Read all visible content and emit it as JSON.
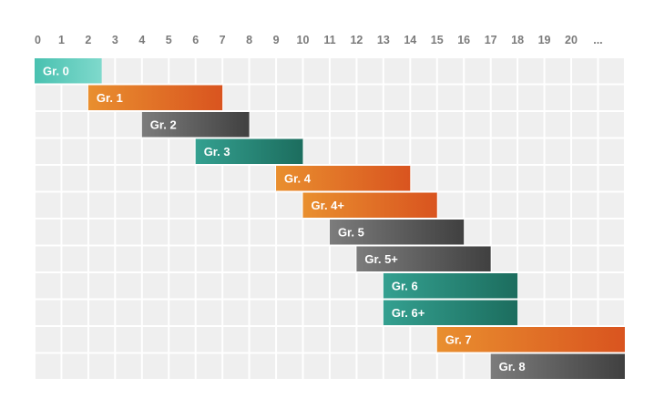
{
  "chart_data": {
    "type": "gantt",
    "title": "",
    "xlabel": "",
    "ylabel": "",
    "grid": true,
    "xlim": [
      0,
      22
    ],
    "x_ticks": [
      {
        "value": 0,
        "label": "0"
      },
      {
        "value": 1,
        "label": "1"
      },
      {
        "value": 2,
        "label": "2"
      },
      {
        "value": 3,
        "label": "3"
      },
      {
        "value": 4,
        "label": "4"
      },
      {
        "value": 5,
        "label": "5"
      },
      {
        "value": 6,
        "label": "6"
      },
      {
        "value": 7,
        "label": "7"
      },
      {
        "value": 8,
        "label": "8"
      },
      {
        "value": 9,
        "label": "9"
      },
      {
        "value": 10,
        "label": "10"
      },
      {
        "value": 11,
        "label": "11"
      },
      {
        "value": 12,
        "label": "12"
      },
      {
        "value": 13,
        "label": "13"
      },
      {
        "value": 14,
        "label": "14"
      },
      {
        "value": 15,
        "label": "15"
      },
      {
        "value": 16,
        "label": "16"
      },
      {
        "value": 17,
        "label": "17"
      },
      {
        "value": 18,
        "label": "18"
      },
      {
        "value": 19,
        "label": "19"
      },
      {
        "value": 20,
        "label": "20"
      },
      {
        "value": 21,
        "label": "..."
      }
    ],
    "bars": [
      {
        "label": "Gr. 0",
        "start": 0,
        "end": 2.5,
        "style": "teal-light"
      },
      {
        "label": "Gr. 1",
        "start": 2,
        "end": 7,
        "style": "orange"
      },
      {
        "label": "Gr. 2",
        "start": 4,
        "end": 8,
        "style": "gray"
      },
      {
        "label": "Gr. 3",
        "start": 6,
        "end": 10,
        "style": "teal"
      },
      {
        "label": "Gr. 4",
        "start": 9,
        "end": 14,
        "style": "orange"
      },
      {
        "label": "Gr. 4+",
        "start": 10,
        "end": 15,
        "style": "orange"
      },
      {
        "label": "Gr. 5",
        "start": 11,
        "end": 16,
        "style": "gray"
      },
      {
        "label": "Gr. 5+",
        "start": 12,
        "end": 17,
        "style": "gray"
      },
      {
        "label": "Gr. 6",
        "start": 13,
        "end": 18,
        "style": "teal"
      },
      {
        "label": "Gr. 6+",
        "start": 13,
        "end": 18,
        "style": "teal"
      },
      {
        "label": "Gr. 7",
        "start": 15,
        "end": 22,
        "style": "orange"
      },
      {
        "label": "Gr. 8",
        "start": 17,
        "end": 22,
        "style": "gray"
      }
    ],
    "colors": {
      "grid_cell": "#efefef",
      "tick_text": "#7b7b7b",
      "teal-light": [
        "#49c1b0",
        "#7fd9cc"
      ],
      "orange": [
        "#e98f2f",
        "#d9541f"
      ],
      "gray": [
        "#7c7c7c",
        "#404040"
      ],
      "teal": [
        "#34a090",
        "#1c6d5e"
      ]
    }
  }
}
